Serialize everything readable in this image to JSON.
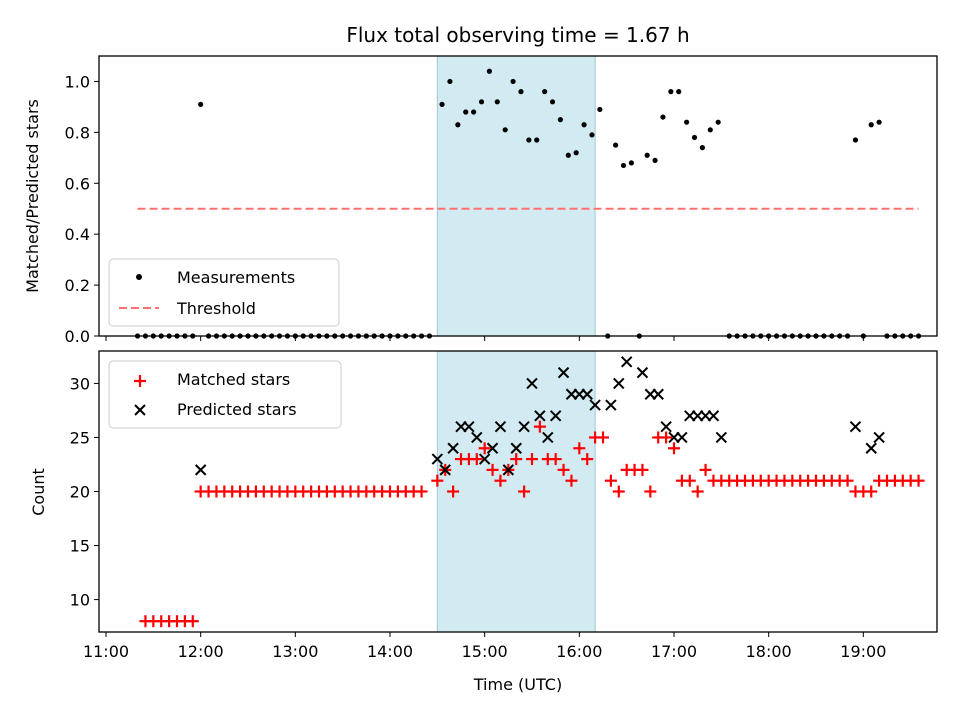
{
  "chart_data": [
    {
      "type": "scatter",
      "title": "Flux total observing time = 1.67 h",
      "xlabel": "",
      "ylabel": "Matched/Predicted stars",
      "xlim": [
        "11:00",
        "20:00"
      ],
      "ylim": [
        0,
        1.1
      ],
      "yticks": [
        0.0,
        0.2,
        0.4,
        0.6,
        0.8,
        1.0
      ],
      "shaded_span": [
        "14:30",
        "16:10"
      ],
      "shade_color": "#add8e6",
      "legend_position": "lower-left",
      "series": [
        {
          "name": "Measurements",
          "marker": "dot",
          "color": "#000000",
          "points": [
            [
              "11:20",
              0
            ],
            [
              "11:25",
              0
            ],
            [
              "11:30",
              0
            ],
            [
              "11:35",
              0
            ],
            [
              "11:40",
              0
            ],
            [
              "11:45",
              0
            ],
            [
              "11:50",
              0
            ],
            [
              "11:55",
              0
            ],
            [
              "12:00",
              0.91
            ],
            [
              "12:05",
              0
            ],
            [
              "12:10",
              0
            ],
            [
              "12:15",
              0
            ],
            [
              "12:20",
              0
            ],
            [
              "12:25",
              0
            ],
            [
              "12:30",
              0
            ],
            [
              "12:35",
              0
            ],
            [
              "12:40",
              0
            ],
            [
              "12:45",
              0
            ],
            [
              "12:50",
              0
            ],
            [
              "12:55",
              0
            ],
            [
              "13:00",
              0
            ],
            [
              "13:05",
              0
            ],
            [
              "13:10",
              0
            ],
            [
              "13:15",
              0
            ],
            [
              "13:20",
              0
            ],
            [
              "13:25",
              0
            ],
            [
              "13:30",
              0
            ],
            [
              "13:35",
              0
            ],
            [
              "13:40",
              0
            ],
            [
              "13:45",
              0
            ],
            [
              "13:50",
              0
            ],
            [
              "13:55",
              0
            ],
            [
              "14:00",
              0
            ],
            [
              "14:05",
              0
            ],
            [
              "14:10",
              0
            ],
            [
              "14:15",
              0
            ],
            [
              "14:20",
              0
            ],
            [
              "14:25",
              0
            ],
            [
              "14:33",
              0.91
            ],
            [
              "14:38",
              1.0
            ],
            [
              "14:43",
              0.83
            ],
            [
              "14:48",
              0.88
            ],
            [
              "14:53",
              0.88
            ],
            [
              "14:58",
              0.92
            ],
            [
              "15:03",
              1.04
            ],
            [
              "15:08",
              0.92
            ],
            [
              "15:13",
              0.81
            ],
            [
              "15:18",
              1.0
            ],
            [
              "15:23",
              0.96
            ],
            [
              "15:28",
              0.77
            ],
            [
              "15:33",
              0.77
            ],
            [
              "15:38",
              0.96
            ],
            [
              "15:43",
              0.92
            ],
            [
              "15:48",
              0.85
            ],
            [
              "15:53",
              0.71
            ],
            [
              "15:58",
              0.72
            ],
            [
              "16:03",
              0.83
            ],
            [
              "16:08",
              0.79
            ],
            [
              "16:13",
              0.89
            ],
            [
              "16:18",
              0
            ],
            [
              "16:23",
              0.75
            ],
            [
              "16:28",
              0.67
            ],
            [
              "16:33",
              0.68
            ],
            [
              "16:38",
              0
            ],
            [
              "16:43",
              0.71
            ],
            [
              "16:48",
              0.69
            ],
            [
              "16:53",
              0.86
            ],
            [
              "16:58",
              0.96
            ],
            [
              "17:03",
              0.96
            ],
            [
              "17:08",
              0.84
            ],
            [
              "17:13",
              0.78
            ],
            [
              "17:18",
              0.74
            ],
            [
              "17:23",
              0.81
            ],
            [
              "17:28",
              0.84
            ],
            [
              "17:35",
              0
            ],
            [
              "17:40",
              0
            ],
            [
              "17:45",
              0
            ],
            [
              "17:50",
              0
            ],
            [
              "17:55",
              0
            ],
            [
              "18:00",
              0
            ],
            [
              "18:05",
              0
            ],
            [
              "18:10",
              0
            ],
            [
              "18:15",
              0
            ],
            [
              "18:20",
              0
            ],
            [
              "18:25",
              0
            ],
            [
              "18:30",
              0
            ],
            [
              "18:35",
              0
            ],
            [
              "18:40",
              0
            ],
            [
              "18:45",
              0
            ],
            [
              "18:50",
              0
            ],
            [
              "18:55",
              0.77
            ],
            [
              "19:00",
              0
            ],
            [
              "19:05",
              0.83
            ],
            [
              "19:10",
              0.84
            ],
            [
              "19:15",
              0
            ],
            [
              "19:20",
              0
            ],
            [
              "19:25",
              0
            ],
            [
              "19:30",
              0
            ],
            [
              "19:35",
              0
            ]
          ]
        },
        {
          "name": "Threshold",
          "marker": "dashed-line",
          "color": "#ff7070",
          "points": [
            [
              "11:20",
              0.5
            ],
            [
              "19:35",
              0.5
            ]
          ]
        }
      ]
    },
    {
      "type": "scatter",
      "title": "",
      "xlabel": "Time (UTC)",
      "ylabel": "Count",
      "xlim": [
        "11:00",
        "20:00"
      ],
      "ylim": [
        7,
        33
      ],
      "xticks": [
        "11:00",
        "12:00",
        "13:00",
        "14:00",
        "15:00",
        "16:00",
        "17:00",
        "18:00",
        "19:00"
      ],
      "yticks": [
        10,
        15,
        20,
        25,
        30
      ],
      "shaded_span": [
        "14:30",
        "16:10"
      ],
      "shade_color": "#add8e6",
      "legend_position": "upper-left",
      "series": [
        {
          "name": "Matched stars",
          "marker": "plus",
          "color": "#ff0000",
          "points": [
            [
              "11:25",
              8
            ],
            [
              "11:30",
              8
            ],
            [
              "11:35",
              8
            ],
            [
              "11:40",
              8
            ],
            [
              "11:45",
              8
            ],
            [
              "11:50",
              8
            ],
            [
              "11:55",
              8
            ],
            [
              "12:00",
              20
            ],
            [
              "12:05",
              20
            ],
            [
              "12:10",
              20
            ],
            [
              "12:15",
              20
            ],
            [
              "12:20",
              20
            ],
            [
              "12:25",
              20
            ],
            [
              "12:30",
              20
            ],
            [
              "12:35",
              20
            ],
            [
              "12:40",
              20
            ],
            [
              "12:45",
              20
            ],
            [
              "12:50",
              20
            ],
            [
              "12:55",
              20
            ],
            [
              "13:00",
              20
            ],
            [
              "13:05",
              20
            ],
            [
              "13:10",
              20
            ],
            [
              "13:15",
              20
            ],
            [
              "13:20",
              20
            ],
            [
              "13:25",
              20
            ],
            [
              "13:30",
              20
            ],
            [
              "13:35",
              20
            ],
            [
              "13:40",
              20
            ],
            [
              "13:45",
              20
            ],
            [
              "13:50",
              20
            ],
            [
              "13:55",
              20
            ],
            [
              "14:00",
              20
            ],
            [
              "14:05",
              20
            ],
            [
              "14:10",
              20
            ],
            [
              "14:15",
              20
            ],
            [
              "14:20",
              20
            ],
            [
              "14:30",
              21
            ],
            [
              "14:35",
              22
            ],
            [
              "14:40",
              20
            ],
            [
              "14:45",
              23
            ],
            [
              "14:50",
              23
            ],
            [
              "14:55",
              23
            ],
            [
              "15:00",
              24
            ],
            [
              "15:05",
              22
            ],
            [
              "15:10",
              21
            ],
            [
              "15:15",
              22
            ],
            [
              "15:20",
              23
            ],
            [
              "15:25",
              20
            ],
            [
              "15:30",
              23
            ],
            [
              "15:35",
              26
            ],
            [
              "15:40",
              23
            ],
            [
              "15:45",
              23
            ],
            [
              "15:50",
              22
            ],
            [
              "15:55",
              21
            ],
            [
              "16:00",
              24
            ],
            [
              "16:05",
              23
            ],
            [
              "16:10",
              25
            ],
            [
              "16:15",
              25
            ],
            [
              "16:20",
              21
            ],
            [
              "16:25",
              20
            ],
            [
              "16:30",
              22
            ],
            [
              "16:35",
              22
            ],
            [
              "16:40",
              22
            ],
            [
              "16:45",
              20
            ],
            [
              "16:50",
              25
            ],
            [
              "16:55",
              25
            ],
            [
              "17:00",
              24
            ],
            [
              "17:05",
              21
            ],
            [
              "17:10",
              21
            ],
            [
              "17:15",
              20
            ],
            [
              "17:20",
              22
            ],
            [
              "17:25",
              21
            ],
            [
              "17:30",
              21
            ],
            [
              "17:35",
              21
            ],
            [
              "17:40",
              21
            ],
            [
              "17:45",
              21
            ],
            [
              "17:50",
              21
            ],
            [
              "17:55",
              21
            ],
            [
              "18:00",
              21
            ],
            [
              "18:05",
              21
            ],
            [
              "18:10",
              21
            ],
            [
              "18:15",
              21
            ],
            [
              "18:20",
              21
            ],
            [
              "18:25",
              21
            ],
            [
              "18:30",
              21
            ],
            [
              "18:35",
              21
            ],
            [
              "18:40",
              21
            ],
            [
              "18:45",
              21
            ],
            [
              "18:50",
              21
            ],
            [
              "18:55",
              20
            ],
            [
              "19:00",
              20
            ],
            [
              "19:05",
              20
            ],
            [
              "19:10",
              21
            ],
            [
              "19:15",
              21
            ],
            [
              "19:20",
              21
            ],
            [
              "19:25",
              21
            ],
            [
              "19:30",
              21
            ],
            [
              "19:35",
              21
            ]
          ]
        },
        {
          "name": "Predicted stars",
          "marker": "x",
          "color": "#000000",
          "points": [
            [
              "12:00",
              22
            ],
            [
              "14:30",
              23
            ],
            [
              "14:35",
              22
            ],
            [
              "14:40",
              24
            ],
            [
              "14:45",
              26
            ],
            [
              "14:50",
              26
            ],
            [
              "14:55",
              25
            ],
            [
              "15:00",
              23
            ],
            [
              "15:05",
              24
            ],
            [
              "15:10",
              26
            ],
            [
              "15:15",
              22
            ],
            [
              "15:20",
              24
            ],
            [
              "15:25",
              26
            ],
            [
              "15:30",
              30
            ],
            [
              "15:35",
              27
            ],
            [
              "15:40",
              25
            ],
            [
              "15:45",
              27
            ],
            [
              "15:50",
              31
            ],
            [
              "15:55",
              29
            ],
            [
              "16:00",
              29
            ],
            [
              "16:05",
              29
            ],
            [
              "16:10",
              28
            ],
            [
              "16:20",
              28
            ],
            [
              "16:25",
              30
            ],
            [
              "16:30",
              32
            ],
            [
              "16:40",
              31
            ],
            [
              "16:45",
              29
            ],
            [
              "16:50",
              29
            ],
            [
              "16:55",
              26
            ],
            [
              "17:00",
              25
            ],
            [
              "17:05",
              25
            ],
            [
              "17:10",
              27
            ],
            [
              "17:15",
              27
            ],
            [
              "17:20",
              27
            ],
            [
              "17:25",
              27
            ],
            [
              "17:30",
              25
            ],
            [
              "18:55",
              26
            ],
            [
              "19:05",
              24
            ],
            [
              "19:10",
              25
            ]
          ]
        }
      ]
    }
  ]
}
